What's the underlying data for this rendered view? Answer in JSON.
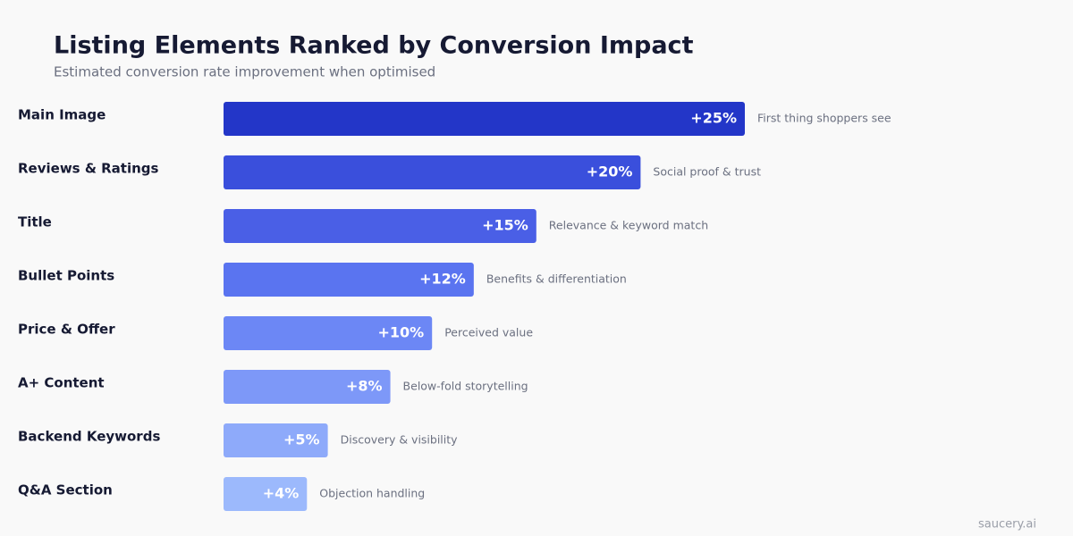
{
  "chart_data": {
    "type": "bar",
    "orientation": "horizontal",
    "title": "Listing Elements Ranked by Conversion Impact",
    "subtitle": "Estimated conversion rate improvement when optimised",
    "categories": [
      "Main Image",
      "Reviews & Ratings",
      "Title",
      "Bullet Points",
      "Price & Offer",
      "A+ Content",
      "Backend Keywords",
      "Q&A Section"
    ],
    "values": [
      25,
      20,
      15,
      12,
      10,
      8,
      5,
      4
    ],
    "value_labels": [
      "+25%",
      "+20%",
      "+15%",
      "+12%",
      "+10%",
      "+8%",
      "+5%",
      "+4%"
    ],
    "annotations": [
      "First thing shoppers see",
      "Social proof & trust",
      "Relevance & keyword match",
      "Benefits & differentiation",
      "Perceived value",
      "Below-fold storytelling",
      "Discovery & visibility",
      "Objection handling"
    ],
    "colors": [
      "#2336c8",
      "#3a4fdc",
      "#4a5fe6",
      "#5a74f0",
      "#6c87f5",
      "#7d98f8",
      "#8eaafa",
      "#9cb9fc"
    ],
    "source": "saucery.ai"
  }
}
